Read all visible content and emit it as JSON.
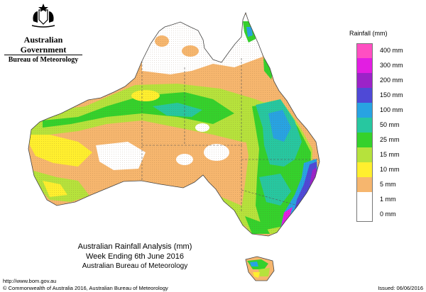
{
  "header": {
    "gov_name": "Australian Government",
    "bureau_name": "Bureau of Meteorology"
  },
  "map": {
    "title": "Australian Rainfall Analysis (mm)",
    "subtitle": "Week Ending 6th June 2016",
    "org": "Australian Bureau of Meteorology",
    "region": "Australia (incl. Tasmania)",
    "dominant_category_by_region": {
      "interior_west": "0 mm",
      "southwest_coast": "15 mm",
      "kimberley_top_end_fringe": "5 mm",
      "central_arid_band": "15 mm",
      "queensland_coast": "50 mm",
      "nsw_coast": "150 mm",
      "tasmania_north": "25 mm"
    }
  },
  "legend": {
    "title": "Rainfall (mm)",
    "items": [
      {
        "label": "400 mm",
        "color": "#ff4fc2"
      },
      {
        "label": "300 mm",
        "color": "#e21ee2"
      },
      {
        "label": "200 mm",
        "color": "#9b23c8"
      },
      {
        "label": "150 mm",
        "color": "#4f49d6"
      },
      {
        "label": "100 mm",
        "color": "#28a3e2"
      },
      {
        "label": "50 mm",
        "color": "#27c7a0"
      },
      {
        "label": "25 mm",
        "color": "#35d12c"
      },
      {
        "label": "15 mm",
        "color": "#b6e23c"
      },
      {
        "label": "10 mm",
        "color": "#ffef2e"
      },
      {
        "label": "5 mm",
        "color": "#f6b66e"
      },
      {
        "label": "1 mm",
        "color": "#ffffff"
      },
      {
        "label": "0 mm",
        "color": "#ffffff"
      }
    ]
  },
  "footer": {
    "url": "http://www.bom.gov.au",
    "copyright": "© Commonwealth of Australia 2016, Australian Bureau of Meteorology",
    "issued": "Issued: 06/06/2016"
  }
}
